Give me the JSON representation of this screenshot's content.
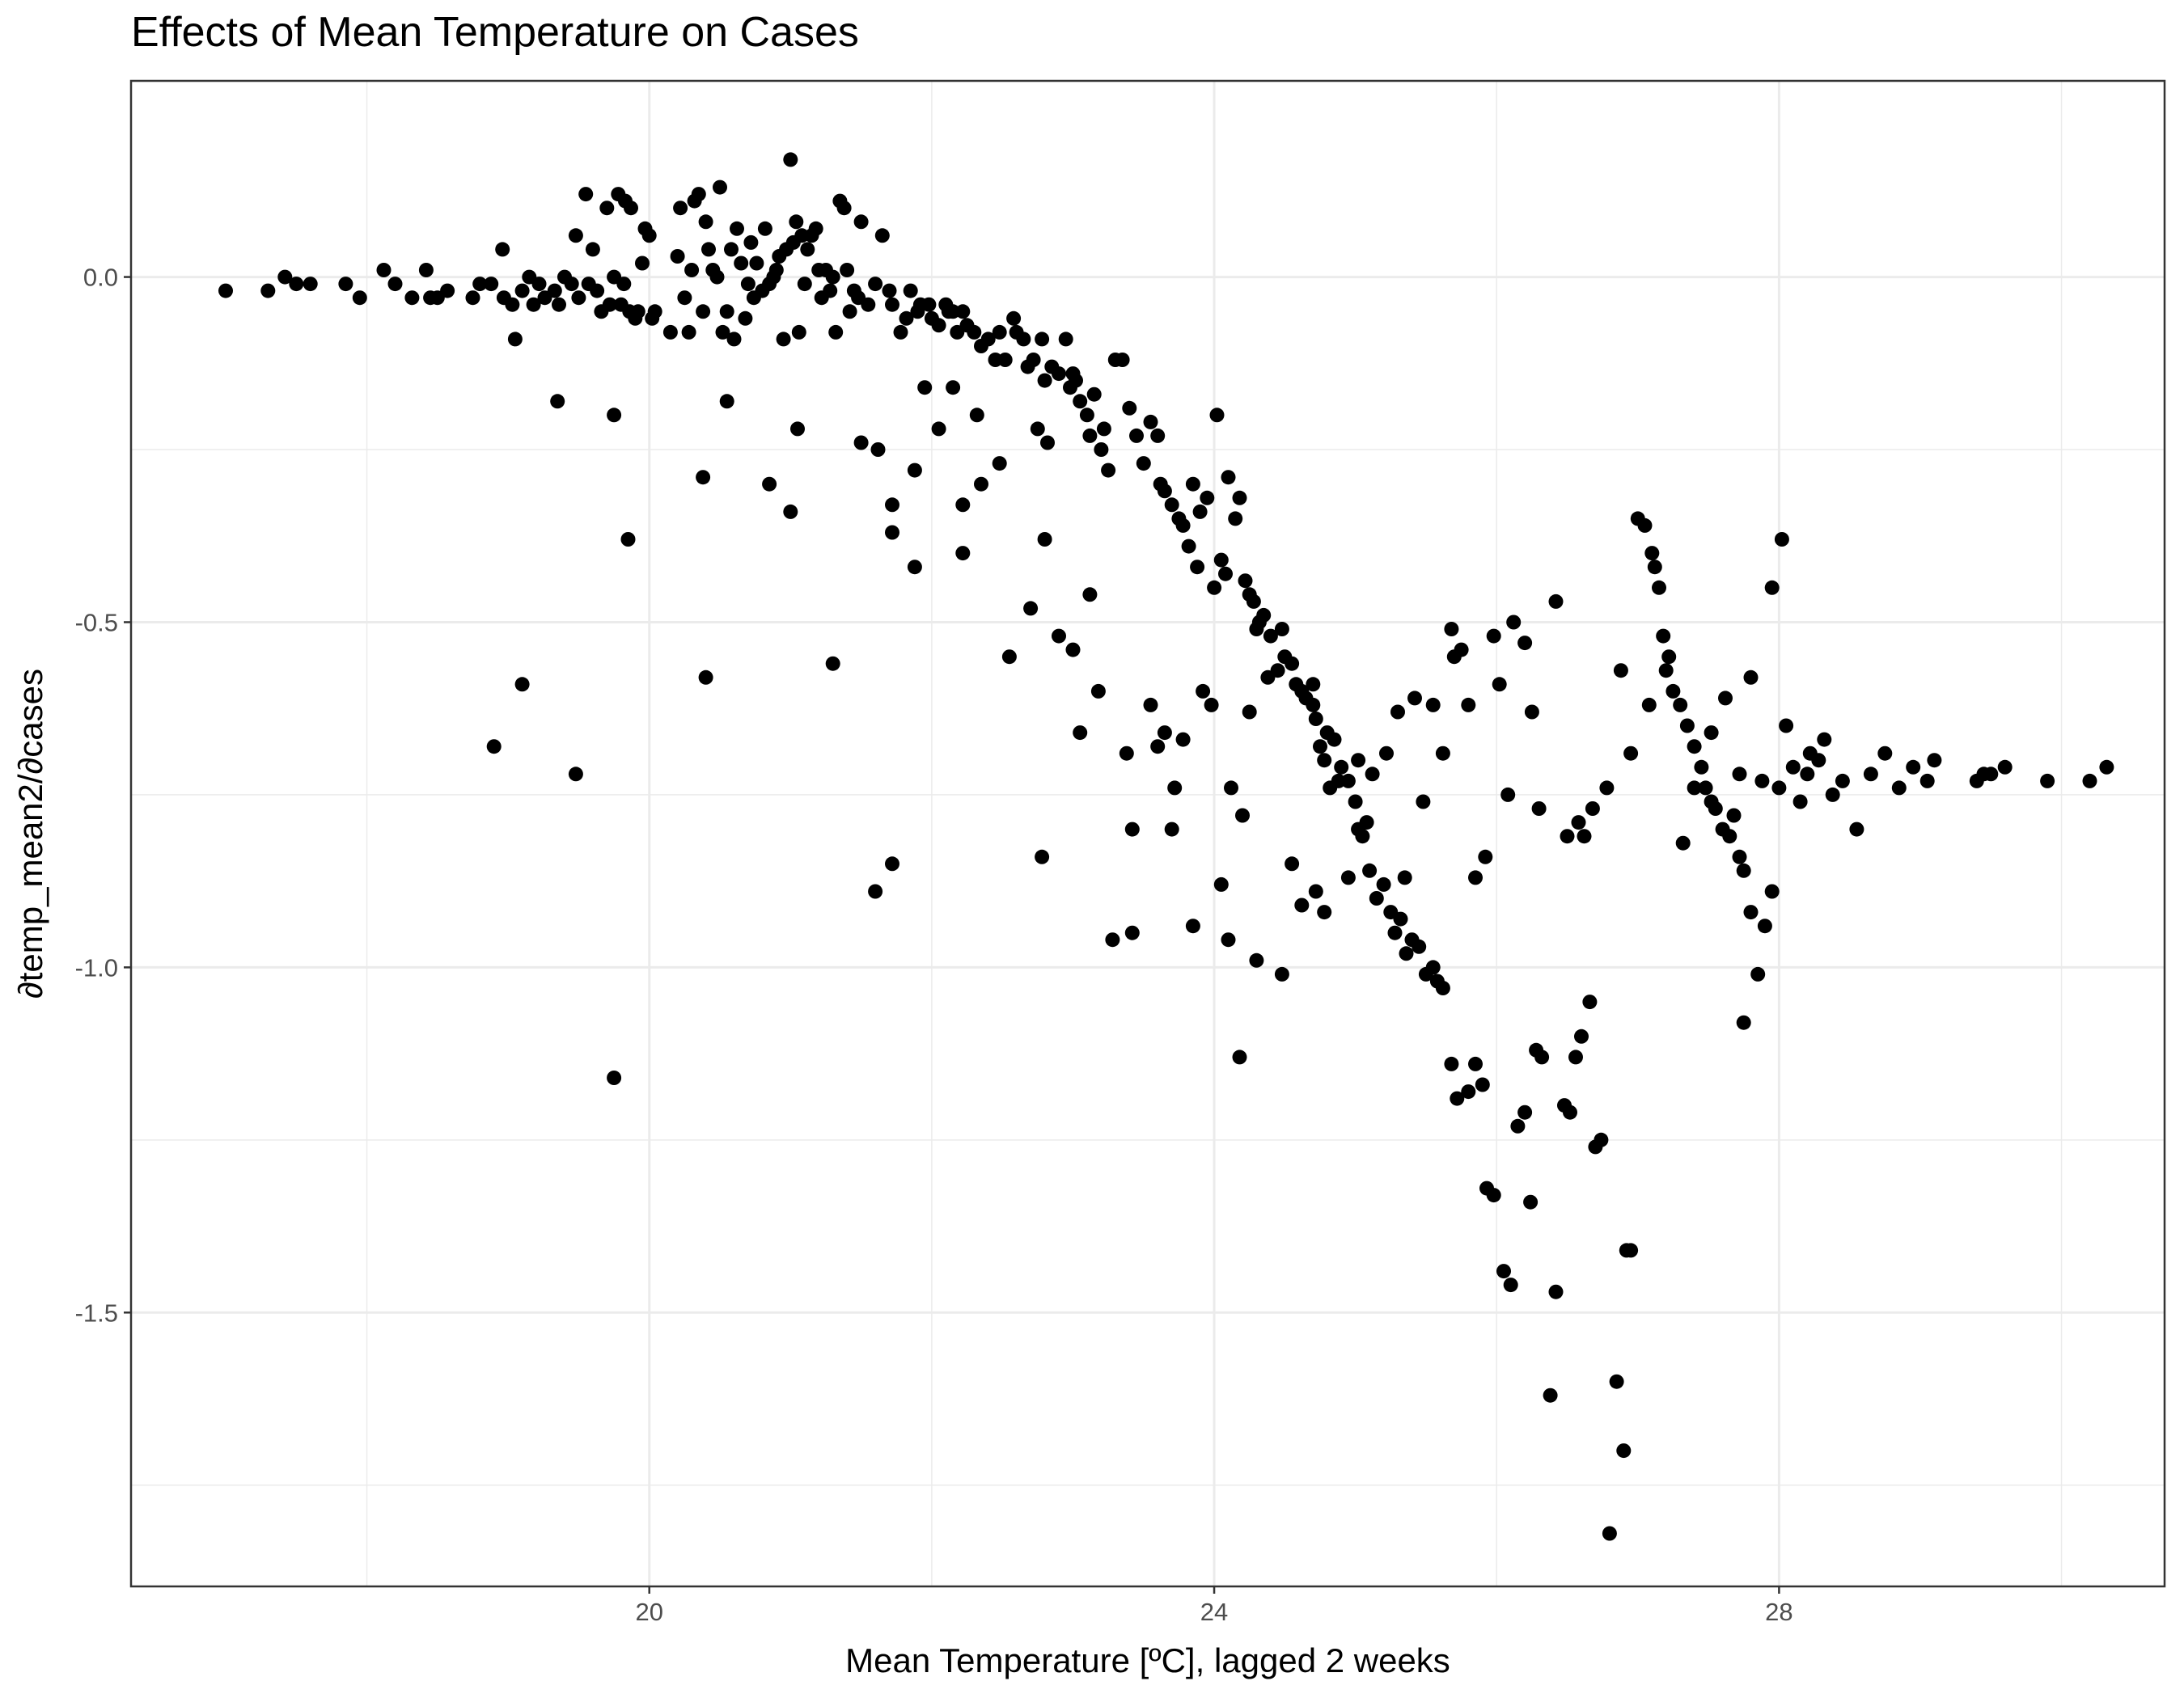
{
  "chart_data": {
    "type": "scatter",
    "title": "Effects of Mean Temperature on Cases",
    "xlabel": "Mean Temperature [ºC], lagged 2 weeks",
    "ylabel": "∂temp_mean2/∂cases",
    "xlim": [
      16.33,
      30.73
    ],
    "ylim": [
      -1.8967,
      0.2841
    ],
    "x_ticks": [
      {
        "value": 20,
        "label": "20"
      },
      {
        "value": 24,
        "label": "24"
      },
      {
        "value": 28,
        "label": "28"
      }
    ],
    "y_ticks": [
      {
        "value": 0.0,
        "label": "0.0"
      },
      {
        "value": -0.5,
        "label": "-0.5"
      },
      {
        "value": -1.0,
        "label": "-1.0"
      },
      {
        "value": -1.5,
        "label": "-1.5"
      }
    ],
    "x_minor_ticks": [
      18,
      22,
      26,
      30
    ],
    "y_minor_ticks": [
      -0.25,
      -0.75,
      -1.25,
      -1.75
    ],
    "grid": true,
    "legend": "none",
    "colors": {
      "points": "#000000",
      "grid": "#ebebeb",
      "panel_border": "#333333"
    },
    "points": [
      [
        17.0,
        -0.02
      ],
      [
        17.3,
        -0.02
      ],
      [
        17.42,
        0.0
      ],
      [
        17.5,
        -0.01
      ],
      [
        17.6,
        -0.01
      ],
      [
        17.85,
        -0.01
      ],
      [
        17.95,
        -0.03
      ],
      [
        18.12,
        0.01
      ],
      [
        18.2,
        -0.01
      ],
      [
        18.32,
        -0.03
      ],
      [
        18.42,
        0.01
      ],
      [
        18.45,
        -0.03
      ],
      [
        18.5,
        -0.03
      ],
      [
        18.57,
        -0.02
      ],
      [
        18.75,
        -0.03
      ],
      [
        18.8,
        -0.01
      ],
      [
        18.88,
        -0.01
      ],
      [
        18.96,
        0.04
      ],
      [
        18.97,
        -0.03
      ],
      [
        19.03,
        -0.04
      ],
      [
        19.1,
        -0.02
      ],
      [
        19.15,
        0.0
      ],
      [
        19.18,
        -0.04
      ],
      [
        19.22,
        -0.01
      ],
      [
        19.26,
        -0.03
      ],
      [
        19.33,
        -0.02
      ],
      [
        19.36,
        -0.04
      ],
      [
        19.4,
        0.0
      ],
      [
        19.45,
        -0.01
      ],
      [
        19.48,
        0.06
      ],
      [
        19.5,
        -0.03
      ],
      [
        19.55,
        0.12
      ],
      [
        19.57,
        -0.01
      ],
      [
        19.6,
        0.04
      ],
      [
        19.63,
        -0.02
      ],
      [
        19.66,
        -0.05
      ],
      [
        19.7,
        0.1
      ],
      [
        19.72,
        -0.04
      ],
      [
        19.75,
        0.0
      ],
      [
        19.78,
        0.12
      ],
      [
        19.8,
        -0.04
      ],
      [
        19.82,
        -0.01
      ],
      [
        19.83,
        0.11
      ],
      [
        19.86,
        -0.05
      ],
      [
        19.87,
        0.1
      ],
      [
        19.9,
        -0.06
      ],
      [
        19.92,
        -0.05
      ],
      [
        19.95,
        0.02
      ],
      [
        19.97,
        0.07
      ],
      [
        20.0,
        0.06
      ],
      [
        20.02,
        -0.06
      ],
      [
        20.04,
        -0.05
      ],
      [
        20.15,
        -0.08
      ],
      [
        20.2,
        0.03
      ],
      [
        20.22,
        0.1
      ],
      [
        20.25,
        -0.03
      ],
      [
        20.28,
        -0.08
      ],
      [
        20.3,
        0.01
      ],
      [
        20.32,
        0.11
      ],
      [
        20.35,
        0.12
      ],
      [
        20.38,
        -0.05
      ],
      [
        20.4,
        0.08
      ],
      [
        20.42,
        0.04
      ],
      [
        20.45,
        0.01
      ],
      [
        20.48,
        0.0
      ],
      [
        20.5,
        0.13
      ],
      [
        20.52,
        -0.08
      ],
      [
        20.55,
        -0.05
      ],
      [
        20.58,
        0.04
      ],
      [
        20.6,
        -0.09
      ],
      [
        20.62,
        0.07
      ],
      [
        20.65,
        0.02
      ],
      [
        20.68,
        -0.06
      ],
      [
        20.7,
        -0.01
      ],
      [
        20.72,
        0.05
      ],
      [
        20.74,
        -0.03
      ],
      [
        20.76,
        0.02
      ],
      [
        20.8,
        -0.02
      ],
      [
        20.82,
        0.07
      ],
      [
        20.85,
        -0.01
      ],
      [
        20.88,
        0.0
      ],
      [
        20.9,
        0.01
      ],
      [
        20.92,
        0.03
      ],
      [
        20.95,
        -0.09
      ],
      [
        20.97,
        0.04
      ],
      [
        21.0,
        0.17
      ],
      [
        21.02,
        0.05
      ],
      [
        21.04,
        0.08
      ],
      [
        21.06,
        -0.08
      ],
      [
        21.08,
        0.06
      ],
      [
        21.1,
        -0.01
      ],
      [
        21.12,
        0.04
      ],
      [
        21.15,
        0.06
      ],
      [
        21.18,
        0.07
      ],
      [
        21.2,
        0.01
      ],
      [
        21.22,
        -0.03
      ],
      [
        21.25,
        0.01
      ],
      [
        21.28,
        -0.02
      ],
      [
        21.3,
        0.0
      ],
      [
        21.32,
        -0.08
      ],
      [
        21.35,
        0.11
      ],
      [
        21.38,
        0.1
      ],
      [
        21.4,
        0.01
      ],
      [
        21.42,
        -0.05
      ],
      [
        21.45,
        -0.02
      ],
      [
        21.48,
        -0.03
      ],
      [
        21.5,
        0.08
      ],
      [
        21.55,
        -0.04
      ],
      [
        21.6,
        -0.01
      ],
      [
        21.65,
        0.06
      ],
      [
        21.7,
        -0.02
      ],
      [
        21.72,
        -0.04
      ],
      [
        21.78,
        -0.08
      ],
      [
        21.82,
        -0.06
      ],
      [
        21.85,
        -0.02
      ],
      [
        21.9,
        -0.05
      ],
      [
        21.92,
        -0.04
      ],
      [
        21.98,
        -0.04
      ],
      [
        22.0,
        -0.06
      ],
      [
        22.05,
        -0.07
      ],
      [
        22.1,
        -0.04
      ],
      [
        22.12,
        -0.05
      ],
      [
        22.15,
        -0.05
      ],
      [
        22.18,
        -0.08
      ],
      [
        22.22,
        -0.05
      ],
      [
        22.25,
        -0.07
      ],
      [
        22.3,
        -0.08
      ],
      [
        22.35,
        -0.1
      ],
      [
        22.4,
        -0.09
      ],
      [
        22.45,
        -0.12
      ],
      [
        22.48,
        -0.08
      ],
      [
        22.52,
        -0.12
      ],
      [
        22.58,
        -0.06
      ],
      [
        22.6,
        -0.08
      ],
      [
        22.65,
        -0.09
      ],
      [
        22.68,
        -0.13
      ],
      [
        22.72,
        -0.12
      ],
      [
        22.78,
        -0.09
      ],
      [
        22.8,
        -0.15
      ],
      [
        22.85,
        -0.13
      ],
      [
        22.9,
        -0.14
      ],
      [
        22.95,
        -0.09
      ],
      [
        22.98,
        -0.16
      ],
      [
        23.0,
        -0.14
      ],
      [
        23.02,
        -0.15
      ],
      [
        23.05,
        -0.18
      ],
      [
        23.1,
        -0.2
      ],
      [
        23.12,
        -0.23
      ],
      [
        23.15,
        -0.17
      ],
      [
        23.2,
        -0.25
      ],
      [
        23.22,
        -0.22
      ],
      [
        23.25,
        -0.28
      ],
      [
        23.3,
        -0.12
      ],
      [
        23.35,
        -0.12
      ],
      [
        23.4,
        -0.19
      ],
      [
        23.45,
        -0.23
      ],
      [
        23.5,
        -0.27
      ],
      [
        23.55,
        -0.21
      ],
      [
        23.6,
        -0.23
      ],
      [
        23.62,
        -0.3
      ],
      [
        23.65,
        -0.31
      ],
      [
        23.7,
        -0.33
      ],
      [
        23.75,
        -0.35
      ],
      [
        23.78,
        -0.36
      ],
      [
        23.82,
        -0.39
      ],
      [
        23.85,
        -0.3
      ],
      [
        23.88,
        -0.42
      ],
      [
        23.9,
        -0.34
      ],
      [
        23.95,
        -0.32
      ],
      [
        24.0,
        -0.45
      ],
      [
        24.02,
        -0.2
      ],
      [
        24.05,
        -0.41
      ],
      [
        24.08,
        -0.43
      ],
      [
        24.1,
        -0.29
      ],
      [
        24.15,
        -0.35
      ],
      [
        24.18,
        -0.32
      ],
      [
        24.22,
        -0.44
      ],
      [
        24.25,
        -0.46
      ],
      [
        24.28,
        -0.47
      ],
      [
        24.3,
        -0.51
      ],
      [
        24.32,
        -0.5
      ],
      [
        24.35,
        -0.49
      ],
      [
        24.4,
        -0.52
      ],
      [
        24.45,
        -0.57
      ],
      [
        24.48,
        -0.51
      ],
      [
        24.5,
        -0.55
      ],
      [
        24.55,
        -0.56
      ],
      [
        24.58,
        -0.59
      ],
      [
        24.62,
        -0.6
      ],
      [
        24.65,
        -0.61
      ],
      [
        24.7,
        -0.62
      ],
      [
        24.72,
        -0.64
      ],
      [
        24.75,
        -0.68
      ],
      [
        24.78,
        -0.7
      ],
      [
        24.8,
        -0.66
      ],
      [
        24.85,
        -0.67
      ],
      [
        24.88,
        -0.73
      ],
      [
        24.9,
        -0.71
      ],
      [
        24.95,
        -0.73
      ],
      [
        25.0,
        -0.76
      ],
      [
        25.02,
        -0.8
      ],
      [
        25.05,
        -0.81
      ],
      [
        25.08,
        -0.79
      ],
      [
        25.1,
        -0.86
      ],
      [
        25.15,
        -0.9
      ],
      [
        25.2,
        -0.88
      ],
      [
        25.25,
        -0.92
      ],
      [
        25.28,
        -0.95
      ],
      [
        25.32,
        -0.93
      ],
      [
        25.36,
        -0.98
      ],
      [
        25.4,
        -0.96
      ],
      [
        25.45,
        -0.97
      ],
      [
        25.5,
        -1.01
      ],
      [
        25.55,
        -1.0
      ],
      [
        25.58,
        -1.02
      ],
      [
        25.62,
        -1.03
      ],
      [
        25.68,
        -1.14
      ],
      [
        25.72,
        -1.19
      ],
      [
        25.8,
        -1.18
      ],
      [
        25.85,
        -1.14
      ],
      [
        25.9,
        -1.17
      ],
      [
        25.93,
        -1.32
      ],
      [
        25.98,
        -1.33
      ],
      [
        26.05,
        -1.44
      ],
      [
        26.1,
        -1.46
      ],
      [
        26.15,
        -1.23
      ],
      [
        26.2,
        -1.21
      ],
      [
        26.24,
        -1.34
      ],
      [
        26.28,
        -1.12
      ],
      [
        26.32,
        -1.13
      ],
      [
        26.38,
        -1.62
      ],
      [
        26.42,
        -1.47
      ],
      [
        26.48,
        -1.2
      ],
      [
        26.52,
        -1.21
      ],
      [
        26.56,
        -1.13
      ],
      [
        26.6,
        -1.1
      ],
      [
        26.66,
        -1.05
      ],
      [
        26.7,
        -1.26
      ],
      [
        26.74,
        -1.25
      ],
      [
        26.8,
        -1.82
      ],
      [
        26.85,
        -1.6
      ],
      [
        26.9,
        -1.7
      ],
      [
        26.92,
        -1.41
      ],
      [
        26.95,
        -1.41
      ],
      [
        27.0,
        -0.35
      ],
      [
        27.05,
        -0.36
      ],
      [
        27.1,
        -0.4
      ],
      [
        27.12,
        -0.42
      ],
      [
        27.15,
        -0.45
      ],
      [
        27.18,
        -0.52
      ],
      [
        27.22,
        -0.55
      ],
      [
        27.25,
        -0.6
      ],
      [
        27.3,
        -0.62
      ],
      [
        27.35,
        -0.65
      ],
      [
        27.4,
        -0.68
      ],
      [
        27.45,
        -0.71
      ],
      [
        27.48,
        -0.74
      ],
      [
        27.52,
        -0.76
      ],
      [
        27.55,
        -0.77
      ],
      [
        27.6,
        -0.8
      ],
      [
        27.65,
        -0.81
      ],
      [
        27.68,
        -0.78
      ],
      [
        27.72,
        -0.84
      ],
      [
        27.75,
        -0.86
      ],
      [
        27.8,
        -0.92
      ],
      [
        27.85,
        -1.01
      ],
      [
        27.9,
        -0.94
      ],
      [
        27.95,
        -0.89
      ],
      [
        28.0,
        -0.74
      ],
      [
        28.02,
        -0.38
      ],
      [
        28.05,
        -0.65
      ],
      [
        28.1,
        -0.71
      ],
      [
        28.15,
        -0.76
      ],
      [
        28.2,
        -0.72
      ],
      [
        28.22,
        -0.69
      ],
      [
        28.28,
        -0.7
      ],
      [
        28.32,
        -0.67
      ],
      [
        28.38,
        -0.75
      ],
      [
        28.45,
        -0.73
      ],
      [
        28.55,
        -0.8
      ],
      [
        28.65,
        -0.72
      ],
      [
        28.75,
        -0.69
      ],
      [
        28.85,
        -0.74
      ],
      [
        28.95,
        -0.71
      ],
      [
        29.05,
        -0.73
      ],
      [
        29.1,
        -0.7
      ],
      [
        29.4,
        -0.73
      ],
      [
        29.45,
        -0.72
      ],
      [
        29.5,
        -0.72
      ],
      [
        29.6,
        -0.71
      ],
      [
        29.9,
        -0.73
      ],
      [
        30.2,
        -0.73
      ],
      [
        30.32,
        -0.71
      ],
      [
        19.05,
        -0.09
      ],
      [
        19.35,
        -0.18
      ],
      [
        19.48,
        -0.72
      ],
      [
        19.1,
        -0.59
      ],
      [
        19.75,
        -0.2
      ],
      [
        19.85,
        -0.38
      ],
      [
        19.75,
        -1.16
      ],
      [
        18.9,
        -0.68
      ],
      [
        20.38,
        -0.29
      ],
      [
        20.4,
        -0.58
      ],
      [
        20.55,
        -0.18
      ],
      [
        20.85,
        -0.3
      ],
      [
        21.0,
        -0.34
      ],
      [
        21.05,
        -0.22
      ],
      [
        21.3,
        -0.56
      ],
      [
        21.5,
        -0.24
      ],
      [
        21.62,
        -0.25
      ],
      [
        21.6,
        -0.89
      ],
      [
        21.72,
        -0.33
      ],
      [
        21.72,
        -0.37
      ],
      [
        21.72,
        -0.85
      ],
      [
        21.88,
        -0.28
      ],
      [
        21.88,
        -0.42
      ],
      [
        21.95,
        -0.16
      ],
      [
        22.05,
        -0.22
      ],
      [
        22.15,
        -0.16
      ],
      [
        22.22,
        -0.33
      ],
      [
        22.22,
        -0.4
      ],
      [
        22.32,
        -0.2
      ],
      [
        22.35,
        -0.3
      ],
      [
        22.48,
        -0.27
      ],
      [
        22.55,
        -0.55
      ],
      [
        22.7,
        -0.48
      ],
      [
        22.75,
        -0.22
      ],
      [
        22.8,
        -0.38
      ],
      [
        22.78,
        -0.84
      ],
      [
        22.82,
        -0.24
      ],
      [
        22.9,
        -0.52
      ],
      [
        23.0,
        -0.54
      ],
      [
        23.05,
        -0.66
      ],
      [
        23.12,
        -0.46
      ],
      [
        23.18,
        -0.6
      ],
      [
        23.28,
        -0.96
      ],
      [
        23.38,
        -0.69
      ],
      [
        23.42,
        -0.8
      ],
      [
        23.42,
        -0.95
      ],
      [
        23.55,
        -0.62
      ],
      [
        23.6,
        -0.68
      ],
      [
        23.65,
        -0.66
      ],
      [
        23.7,
        -0.8
      ],
      [
        23.72,
        -0.74
      ],
      [
        23.78,
        -0.67
      ],
      [
        23.85,
        -0.94
      ],
      [
        23.92,
        -0.6
      ],
      [
        23.98,
        -0.62
      ],
      [
        24.05,
        -0.88
      ],
      [
        24.1,
        -0.96
      ],
      [
        24.12,
        -0.74
      ],
      [
        24.18,
        -1.13
      ],
      [
        24.2,
        -0.78
      ],
      [
        24.25,
        -0.63
      ],
      [
        24.3,
        -0.99
      ],
      [
        24.38,
        -0.58
      ],
      [
        24.48,
        -1.01
      ],
      [
        24.55,
        -0.85
      ],
      [
        24.62,
        -0.91
      ],
      [
        24.7,
        -0.59
      ],
      [
        24.72,
        -0.89
      ],
      [
        24.78,
        -0.92
      ],
      [
        24.82,
        -0.74
      ],
      [
        24.95,
        -0.87
      ],
      [
        25.02,
        -0.7
      ],
      [
        25.12,
        -0.72
      ],
      [
        25.22,
        -0.69
      ],
      [
        25.3,
        -0.63
      ],
      [
        25.35,
        -0.87
      ],
      [
        25.42,
        -0.61
      ],
      [
        25.48,
        -0.76
      ],
      [
        25.55,
        -0.62
      ],
      [
        25.62,
        -0.69
      ],
      [
        25.68,
        -0.51
      ],
      [
        25.7,
        -0.55
      ],
      [
        25.75,
        -0.54
      ],
      [
        25.8,
        -0.62
      ],
      [
        25.85,
        -0.87
      ],
      [
        25.92,
        -0.84
      ],
      [
        25.98,
        -0.52
      ],
      [
        26.02,
        -0.59
      ],
      [
        26.08,
        -0.75
      ],
      [
        26.12,
        -0.5
      ],
      [
        26.2,
        -0.53
      ],
      [
        26.25,
        -0.63
      ],
      [
        26.3,
        -0.77
      ],
      [
        26.42,
        -0.47
      ],
      [
        26.5,
        -0.81
      ],
      [
        26.58,
        -0.79
      ],
      [
        26.62,
        -0.81
      ],
      [
        26.68,
        -0.77
      ],
      [
        26.78,
        -0.74
      ],
      [
        26.88,
        -0.57
      ],
      [
        26.95,
        -0.69
      ],
      [
        27.08,
        -0.62
      ],
      [
        27.2,
        -0.57
      ],
      [
        27.32,
        -0.82
      ],
      [
        27.4,
        -0.74
      ],
      [
        27.52,
        -0.66
      ],
      [
        27.62,
        -0.61
      ],
      [
        27.72,
        -0.72
      ],
      [
        27.8,
        -0.58
      ],
      [
        27.88,
        -0.73
      ],
      [
        27.95,
        -0.45
      ],
      [
        27.75,
        -1.08
      ]
    ]
  }
}
